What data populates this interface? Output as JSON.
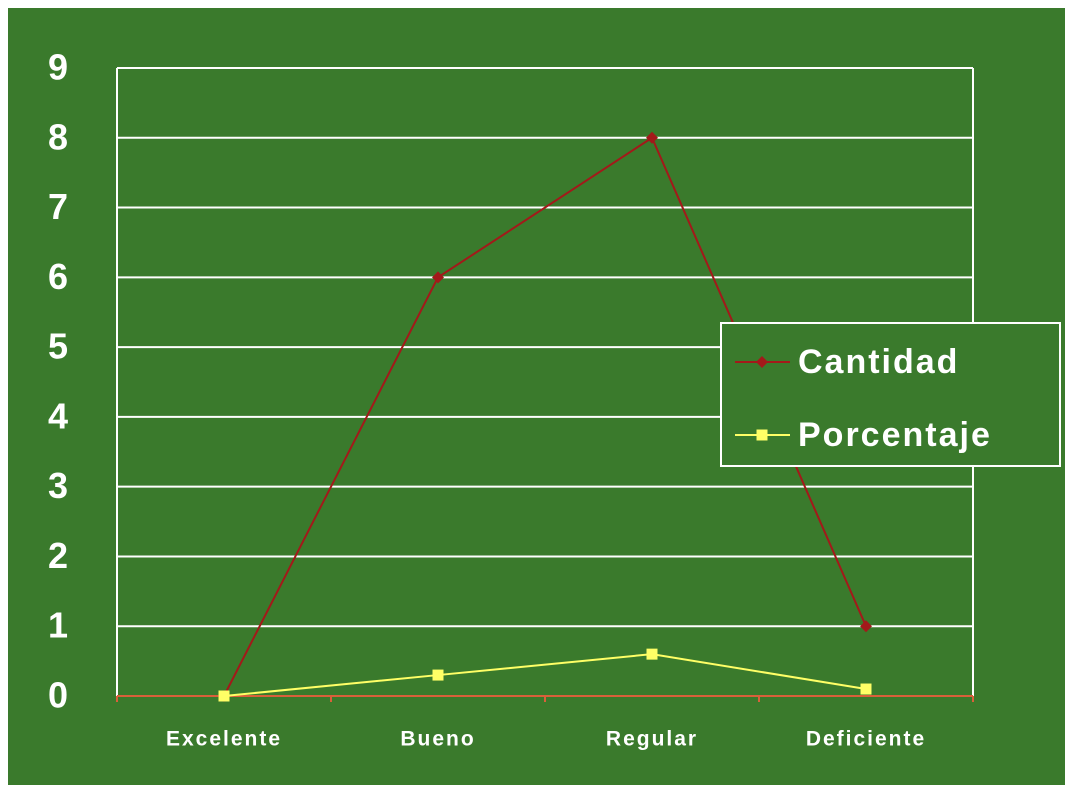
{
  "chart_data": {
    "type": "line",
    "categories": [
      "Excelente",
      "Bueno",
      "Regular",
      "Deficiente"
    ],
    "series": [
      {
        "name": "Cantidad",
        "color": "#a3191a",
        "values": [
          0,
          6,
          8,
          1
        ]
      },
      {
        "name": "Porcentaje",
        "color": "#ffff66",
        "values": [
          0,
          0.3,
          0.6,
          0.1
        ]
      }
    ],
    "ylim": [
      0,
      9
    ],
    "yticks": [
      0,
      1,
      2,
      3,
      4,
      5,
      6,
      7,
      8,
      9
    ],
    "grid": true,
    "legend": "right"
  }
}
